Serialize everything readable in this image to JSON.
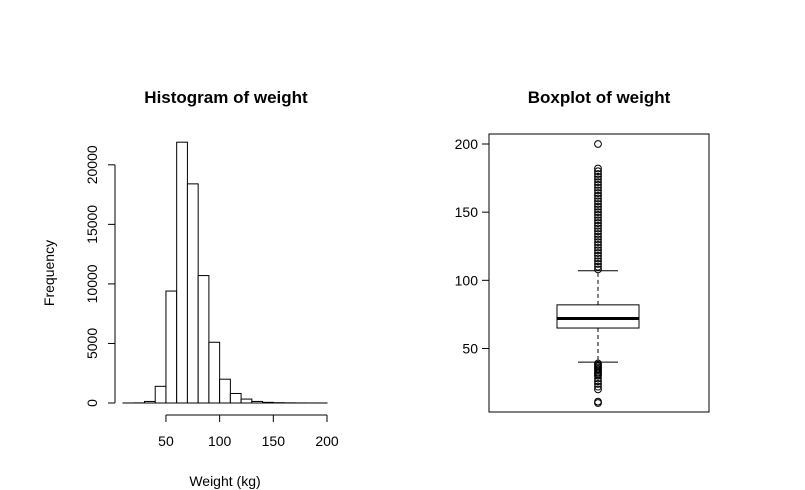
{
  "chart_data": [
    {
      "type": "bar",
      "title": "Histogram of weight",
      "xlabel": "Weight (kg)",
      "ylabel": "Frequency",
      "xlim": [
        10,
        200
      ],
      "ylim": [
        0,
        22000
      ],
      "bin_width": 10,
      "bins": [
        {
          "x0": 10,
          "x1": 20,
          "count": 2
        },
        {
          "x0": 20,
          "x1": 30,
          "count": 10
        },
        {
          "x0": 30,
          "x1": 40,
          "count": 130
        },
        {
          "x0": 40,
          "x1": 50,
          "count": 1400
        },
        {
          "x0": 50,
          "x1": 60,
          "count": 9400
        },
        {
          "x0": 60,
          "x1": 70,
          "count": 21900
        },
        {
          "x0": 70,
          "x1": 80,
          "count": 18400
        },
        {
          "x0": 80,
          "x1": 90,
          "count": 10700
        },
        {
          "x0": 90,
          "x1": 100,
          "count": 5100
        },
        {
          "x0": 100,
          "x1": 110,
          "count": 2000
        },
        {
          "x0": 110,
          "x1": 120,
          "count": 800
        },
        {
          "x0": 120,
          "x1": 130,
          "count": 330
        },
        {
          "x0": 130,
          "x1": 140,
          "count": 130
        },
        {
          "x0": 140,
          "x1": 150,
          "count": 55
        },
        {
          "x0": 150,
          "x1": 160,
          "count": 25
        },
        {
          "x0": 160,
          "x1": 170,
          "count": 12
        },
        {
          "x0": 170,
          "x1": 180,
          "count": 6
        },
        {
          "x0": 180,
          "x1": 190,
          "count": 3
        },
        {
          "x0": 190,
          "x1": 200,
          "count": 2
        }
      ],
      "x_ticks": [
        50,
        100,
        150,
        200
      ],
      "y_ticks": [
        0,
        5000,
        10000,
        15000,
        20000
      ],
      "grid": false
    },
    {
      "type": "box",
      "title": "Boxplot of weight",
      "ylim": [
        10,
        200
      ],
      "y_ticks": [
        50,
        100,
        150,
        200
      ],
      "box": {
        "lower_whisker": 40,
        "q1": 65,
        "median": 72,
        "q3": 82,
        "upper_whisker": 107
      },
      "outliers": [
        10,
        11,
        20,
        22,
        24,
        26,
        28,
        30,
        31,
        32,
        33,
        34,
        35,
        36,
        37,
        38,
        39,
        108,
        110,
        112,
        114,
        116,
        118,
        120,
        122,
        124,
        126,
        128,
        130,
        132,
        134,
        136,
        138,
        140,
        142,
        144,
        146,
        148,
        150,
        152,
        154,
        156,
        158,
        160,
        162,
        164,
        166,
        168,
        170,
        172,
        174,
        176,
        178,
        180,
        182,
        200
      ],
      "grid": false
    }
  ]
}
